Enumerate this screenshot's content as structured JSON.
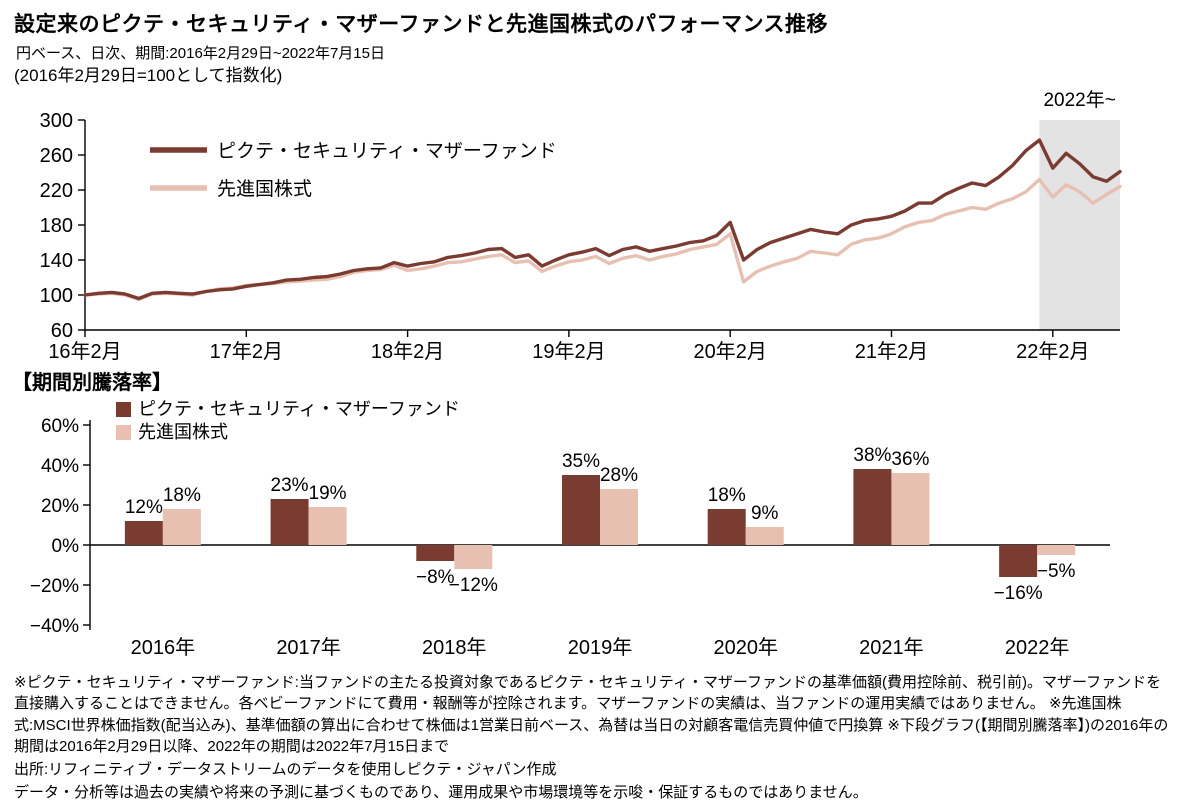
{
  "page": {
    "title": "設定来のピクテ・セキュリティ・マザーファンドと先進国株式のパフォーマンス推移",
    "subtitle_period": "円ベース、日次、期間:2016年2月29日~2022年7月15日",
    "subtitle_index_note": "(2016年2月29日=100として指数化)"
  },
  "colors": {
    "fund": "#7A3B31",
    "benchmark": "#E7C0B2",
    "shade": "#E3E3E3",
    "axis": "#000000"
  },
  "chart_data": [
    {
      "type": "line",
      "title": "",
      "x_unit": "months since 2016-02",
      "x_tick_positions": [
        0,
        12,
        24,
        36,
        48,
        60,
        72
      ],
      "x_tick_labels": [
        "16年2月",
        "17年2月",
        "18年2月",
        "19年2月",
        "20年2月",
        "21年2月",
        "22年2月"
      ],
      "ylim": [
        60,
        300
      ],
      "yticks": [
        60,
        100,
        140,
        180,
        220,
        260,
        300
      ],
      "grid": false,
      "legend_position": "upper-left-inside",
      "shaded_region_label": "2022年~",
      "shaded_region_start_month": 71,
      "series": [
        {
          "name": "ピクテ・セキュリティ・マザーファンド",
          "color": "#7A3B31",
          "values": [
            100,
            102,
            103,
            101,
            96,
            102,
            103,
            102,
            101,
            104,
            106,
            107,
            110,
            112,
            114,
            117,
            118,
            120,
            121,
            124,
            128,
            130,
            131,
            137,
            133,
            136,
            138,
            143,
            145,
            148,
            152,
            153,
            143,
            146,
            133,
            140,
            146,
            149,
            153,
            145,
            152,
            155,
            150,
            153,
            156,
            160,
            162,
            168,
            183,
            140,
            152,
            160,
            165,
            170,
            175,
            172,
            170,
            180,
            185,
            187,
            190,
            196,
            205,
            205,
            215,
            222,
            228,
            225,
            235,
            248,
            265,
            277,
            245,
            262,
            250,
            235,
            230,
            241
          ]
        },
        {
          "name": "先進国株式",
          "color": "#E7C0B2",
          "values": [
            100,
            101,
            102,
            100,
            95,
            101,
            102,
            101,
            100,
            104,
            107,
            108,
            111,
            112,
            113,
            115,
            116,
            117,
            118,
            121,
            126,
            128,
            129,
            134,
            128,
            130,
            133,
            137,
            138,
            141,
            144,
            146,
            137,
            139,
            127,
            133,
            138,
            140,
            144,
            136,
            142,
            145,
            140,
            144,
            147,
            152,
            155,
            158,
            170,
            115,
            127,
            133,
            138,
            142,
            150,
            148,
            146,
            158,
            163,
            165,
            170,
            178,
            183,
            185,
            192,
            196,
            200,
            198,
            205,
            210,
            218,
            232,
            212,
            226,
            218,
            205,
            215,
            224
          ]
        }
      ]
    },
    {
      "type": "bar",
      "title": "【期間別騰落率】",
      "categories": [
        "2016年",
        "2017年",
        "2018年",
        "2019年",
        "2020年",
        "2021年",
        "2022年"
      ],
      "ylim": [
        -40,
        60
      ],
      "ytick_values": [
        60,
        40,
        20,
        0,
        -20,
        -40
      ],
      "ytick_labels": [
        "60%",
        "40%",
        "20%",
        "0%",
        "−20%",
        "−40%"
      ],
      "grid": false,
      "legend_position": "upper-left-inside",
      "series": [
        {
          "name": "ピクテ・セキュリティ・マザーファンド",
          "color": "#7A3B31",
          "values": [
            12,
            23,
            -8,
            35,
            18,
            38,
            -16
          ],
          "labels": [
            "12%",
            "23%",
            "−8%",
            "35%",
            "18%",
            "38%",
            "−16%"
          ]
        },
        {
          "name": "先進国株式",
          "color": "#E7C0B2",
          "values": [
            18,
            19,
            -12,
            28,
            9,
            36,
            -5
          ],
          "labels": [
            "18%",
            "19%",
            "−12%",
            "28%",
            "9%",
            "36%",
            "−5%"
          ]
        }
      ]
    }
  ],
  "footnotes": [
    "※ピクテ・セキュリティ・マザーファンド:当ファンドの主たる投資対象であるピクテ・セキュリティ・マザーファンドの基準価額(費用控除前、税引前)。マザーファンドを直接購入することはできません。各ベビーファンドにて費用・報酬等が控除されます。マザーファンドの実績は、当ファンドの運用実績ではありません。 ※先進国株式:MSCI世界株価指数(配当込み)、基準価額の算出に合わせて株価は1営業日前ベース、為替は当日の対顧客電信売買仲値で円換算 ※下段グラフ(【期間別騰落率】)の2016年の期間は2016年2月29日以降、2022年の期間は2022年7月15日まで",
    "出所:リフィニティブ・データストリームのデータを使用しピクテ・ジャパン作成",
    "データ・分析等は過去の実績や将来の予測に基づくものであり、運用成果や市場環境等を示唆・保証するものではありません。"
  ]
}
